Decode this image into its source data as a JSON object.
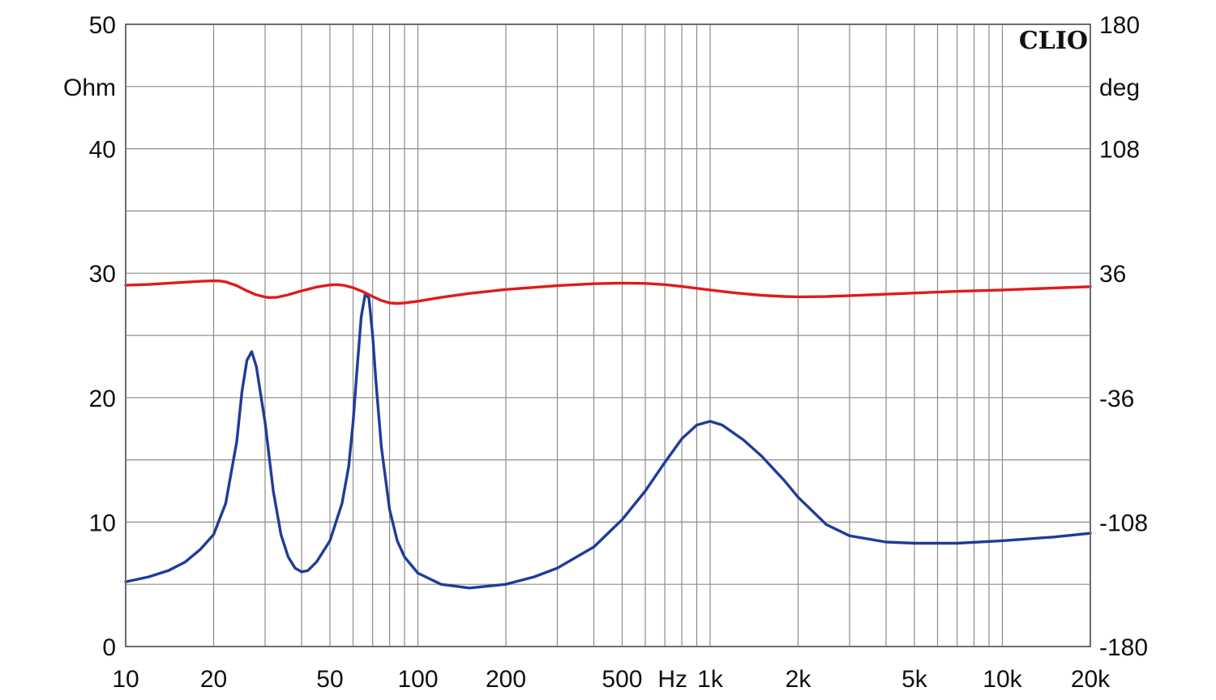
{
  "chart_data": {
    "type": "line",
    "brand": "CLIO",
    "x_scale": "log",
    "xlim": [
      10,
      20000
    ],
    "x_ticks": [
      {
        "value": 10,
        "label": "10"
      },
      {
        "value": 20,
        "label": "20"
      },
      {
        "value": 50,
        "label": "50"
      },
      {
        "value": 100,
        "label": "100"
      },
      {
        "value": 200,
        "label": "200"
      },
      {
        "value": 500,
        "label": "500"
      },
      {
        "value": 1000,
        "label": "1k"
      },
      {
        "value": 2000,
        "label": "2k"
      },
      {
        "value": 5000,
        "label": "5k"
      },
      {
        "value": 10000,
        "label": "10k"
      },
      {
        "value": 20000,
        "label": "20k"
      }
    ],
    "x_unit": "Hz",
    "y_left": {
      "unit": "Ohm",
      "ylim": [
        0,
        50
      ],
      "ticks": [
        {
          "value": 0,
          "label": "0"
        },
        {
          "value": 10,
          "label": "10"
        },
        {
          "value": 20,
          "label": "20"
        },
        {
          "value": 30,
          "label": "30"
        },
        {
          "value": 40,
          "label": "40"
        },
        {
          "value": 50,
          "label": "50"
        }
      ]
    },
    "y_right": {
      "unit": "deg",
      "ylim": [
        -180,
        180
      ],
      "ticks": [
        {
          "value": -180,
          "label": "-180"
        },
        {
          "value": -108,
          "label": "-108"
        },
        {
          "value": -36,
          "label": "-36"
        },
        {
          "value": 36,
          "label": "36"
        },
        {
          "value": 108,
          "label": "108"
        },
        {
          "value": 180,
          "label": "180"
        }
      ]
    },
    "grid": true,
    "series": [
      {
        "axis": "left",
        "color": "#1f3c99",
        "points": [
          [
            10,
            5.2
          ],
          [
            12,
            5.6
          ],
          [
            14,
            6.1
          ],
          [
            16,
            6.8
          ],
          [
            18,
            7.8
          ],
          [
            20,
            9.0
          ],
          [
            22,
            11.5
          ],
          [
            24,
            16.5
          ],
          [
            25,
            20.5
          ],
          [
            26,
            23.0
          ],
          [
            27,
            23.7
          ],
          [
            28,
            22.5
          ],
          [
            30,
            18.0
          ],
          [
            32,
            12.5
          ],
          [
            34,
            9.0
          ],
          [
            36,
            7.2
          ],
          [
            38,
            6.3
          ],
          [
            40,
            6.0
          ],
          [
            42,
            6.1
          ],
          [
            45,
            6.8
          ],
          [
            50,
            8.5
          ],
          [
            55,
            11.5
          ],
          [
            58,
            14.5
          ],
          [
            60,
            18.0
          ],
          [
            62,
            22.5
          ],
          [
            64,
            26.5
          ],
          [
            66,
            28.3
          ],
          [
            68,
            28.0
          ],
          [
            70,
            25.0
          ],
          [
            72,
            21.0
          ],
          [
            75,
            16.0
          ],
          [
            80,
            11.0
          ],
          [
            85,
            8.5
          ],
          [
            90,
            7.2
          ],
          [
            100,
            5.9
          ],
          [
            120,
            5.0
          ],
          [
            150,
            4.7
          ],
          [
            200,
            5.0
          ],
          [
            250,
            5.6
          ],
          [
            300,
            6.3
          ],
          [
            400,
            8.0
          ],
          [
            500,
            10.2
          ],
          [
            600,
            12.5
          ],
          [
            700,
            14.8
          ],
          [
            800,
            16.7
          ],
          [
            900,
            17.8
          ],
          [
            1000,
            18.1
          ],
          [
            1100,
            17.8
          ],
          [
            1300,
            16.6
          ],
          [
            1500,
            15.3
          ],
          [
            1800,
            13.3
          ],
          [
            2000,
            12.0
          ],
          [
            2500,
            9.8
          ],
          [
            3000,
            8.9
          ],
          [
            4000,
            8.4
          ],
          [
            5000,
            8.3
          ],
          [
            7000,
            8.3
          ],
          [
            10000,
            8.5
          ],
          [
            15000,
            8.8
          ],
          [
            20000,
            9.1
          ]
        ]
      },
      {
        "axis": "right",
        "color": "#e01b1b",
        "points": [
          [
            10,
            29.0
          ],
          [
            12,
            29.5
          ],
          [
            14,
            30.2
          ],
          [
            16,
            30.8
          ],
          [
            18,
            31.3
          ],
          [
            20,
            31.6
          ],
          [
            21,
            31.5
          ],
          [
            22,
            31.0
          ],
          [
            24,
            28.8
          ],
          [
            26,
            25.8
          ],
          [
            28,
            23.5
          ],
          [
            30,
            22.2
          ],
          [
            31,
            21.9
          ],
          [
            33,
            22.1
          ],
          [
            36,
            23.5
          ],
          [
            40,
            25.8
          ],
          [
            45,
            28.0
          ],
          [
            50,
            29.2
          ],
          [
            53,
            29.4
          ],
          [
            56,
            28.9
          ],
          [
            60,
            27.6
          ],
          [
            65,
            25.2
          ],
          [
            70,
            22.5
          ],
          [
            75,
            20.2
          ],
          [
            80,
            18.8
          ],
          [
            85,
            18.5
          ],
          [
            90,
            18.8
          ],
          [
            100,
            19.8
          ],
          [
            120,
            22.0
          ],
          [
            150,
            24.3
          ],
          [
            200,
            26.6
          ],
          [
            300,
            28.8
          ],
          [
            400,
            29.9
          ],
          [
            500,
            30.3
          ],
          [
            600,
            30.1
          ],
          [
            700,
            29.4
          ],
          [
            800,
            28.3
          ],
          [
            1000,
            26.3
          ],
          [
            1200,
            24.7
          ],
          [
            1500,
            23.2
          ],
          [
            1800,
            22.5
          ],
          [
            2000,
            22.3
          ],
          [
            2500,
            22.5
          ],
          [
            3000,
            23.0
          ],
          [
            5000,
            24.5
          ],
          [
            7000,
            25.5
          ],
          [
            10000,
            26.3
          ],
          [
            15000,
            27.4
          ],
          [
            20000,
            28.2
          ]
        ]
      }
    ]
  }
}
